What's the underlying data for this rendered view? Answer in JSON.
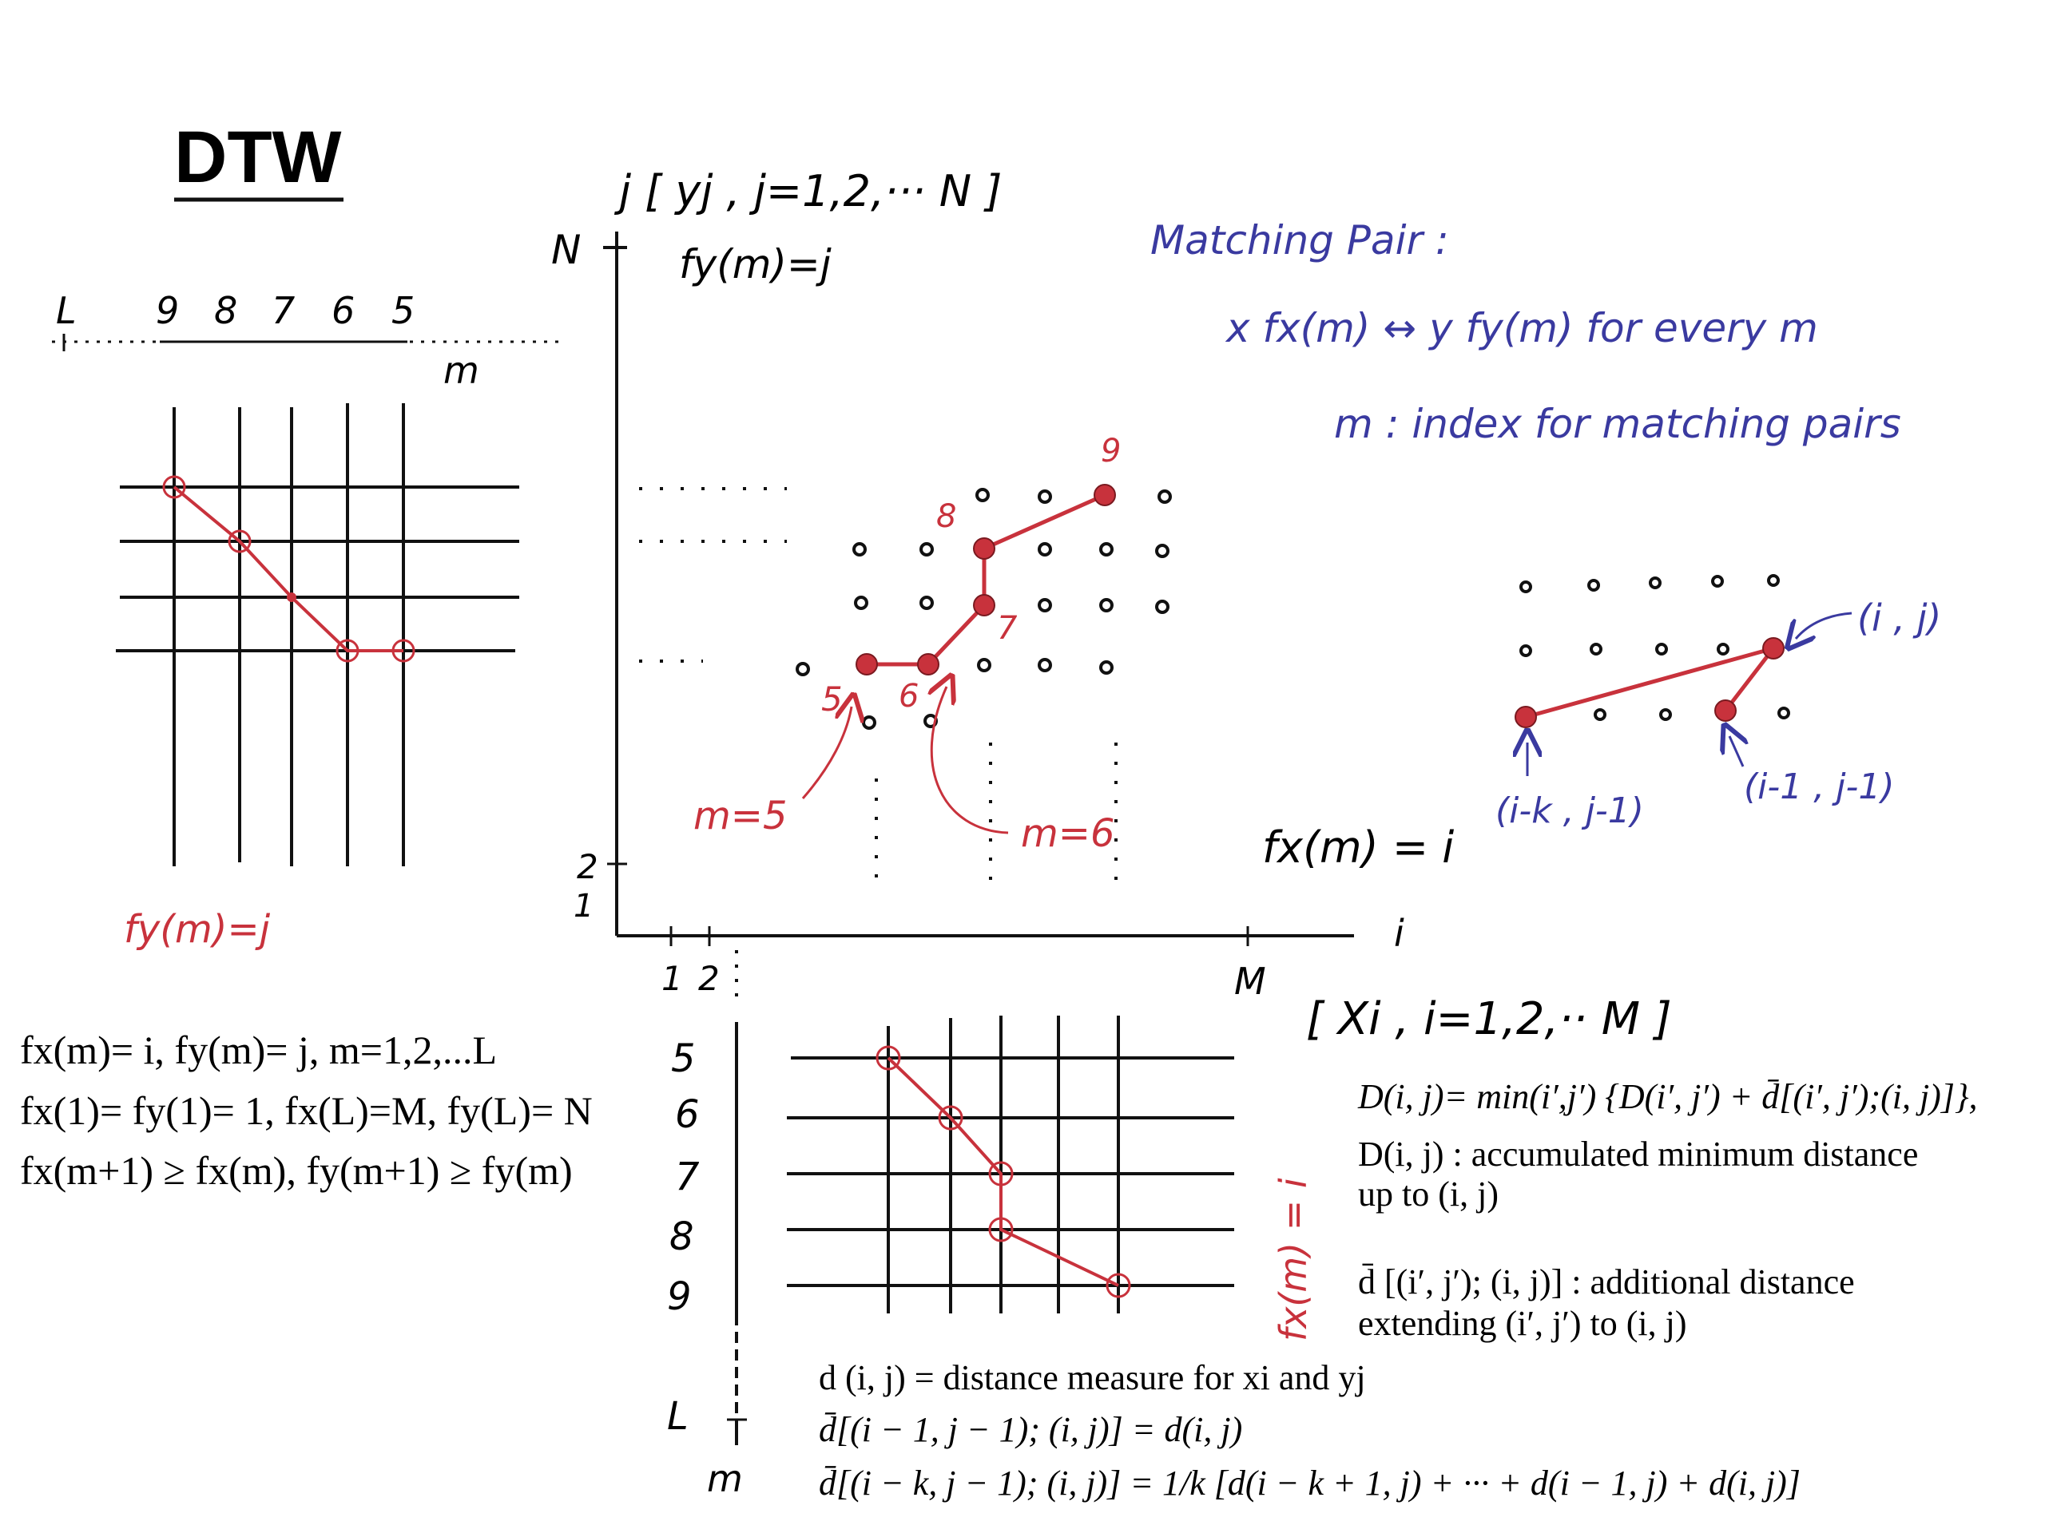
{
  "title": "DTW",
  "colors": {
    "red": "#c8323c",
    "blue": "#3a3aa0",
    "ink": "#111111"
  },
  "top_left": {
    "axis_label": "L",
    "ticks": [
      "9",
      "8",
      "7",
      "6",
      "5"
    ],
    "axis_name": "m",
    "caption": "fy(m)=j"
  },
  "main": {
    "j_axis_label": "j [ yj , j=1,2,··· N ]",
    "n_label": "N",
    "fy_label": "fy(m)=j",
    "tick_2": "2",
    "tick_1": "1",
    "i_label": "i",
    "m_label": "M",
    "x_tick_1": "1",
    "x_tick_2": "2",
    "x_seq_label": "[ Xi , i=1,2,·· M ]",
    "fx_label": "fx(m) = i",
    "path_nums": [
      "5",
      "6",
      "7",
      "8",
      "9"
    ],
    "m5": "m=5",
    "m6": "m=6"
  },
  "matching": {
    "title": "Matching Pair :",
    "relation": "x fx(m) ↔ y fy(m)  for every m",
    "index": "m : index for matching pairs"
  },
  "right_grid": {
    "ij": "(i , j)",
    "ikj1": "(i-k , j-1)",
    "i1j1": "(i-1 , j-1)"
  },
  "constraints": [
    "fx(m)= i, fy(m)= j, m=1,2,...L",
    "fx(1)= fy(1)= 1, fx(L)=M, fy(L)= N",
    "fx(m+1) ≥ fx(m), fy(m+1) ≥ fy(m)"
  ],
  "bottom_grid": {
    "ticks": [
      "5",
      "6",
      "7",
      "8",
      "9"
    ],
    "l_label": "L",
    "m_label": "m",
    "rotated": "fx(m) = i"
  },
  "formulas": {
    "D_eq": "D(i, j)= min(i′,j′) {D(i′, j′) + d̄[(i′, j′);(i, j)]},",
    "D_desc1": "D(i, j) : accumulated minimum distance",
    "D_desc2": "up to (i, j)",
    "dbar_desc1": "d̄ [(i′, j′); (i, j)] : additional distance",
    "dbar_desc2": "extending (i′, j′) to (i, j)",
    "d_def": "d (i, j) = distance measure for xi and yj",
    "dbar1": "d̄[(i − 1, j − 1); (i, j)] = d(i, j)",
    "dbar2": "d̄[(i − k, j − 1); (i, j)] = 1/k [d(i − k + 1, j) + ··· + d(i − 1, j) + d(i, j)]"
  }
}
